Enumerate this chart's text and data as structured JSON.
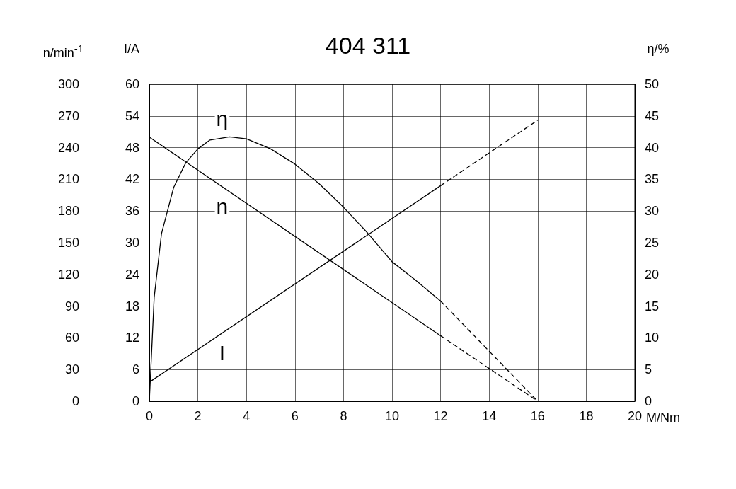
{
  "chart_data": {
    "type": "line",
    "title": "404 311",
    "xlabel": "M/Nm",
    "ylabel": "n/min$^{-1}$",
    "y2label": "I/A",
    "y3label": "η/%",
    "marker": "none",
    "grid": true,
    "xlim": [
      0,
      20
    ],
    "xticks": [
      0,
      2,
      4,
      6,
      8,
      10,
      12,
      14,
      16,
      18,
      20
    ],
    "ylim": [
      0,
      300
    ],
    "yticks": [
      0,
      30,
      60,
      90,
      120,
      150,
      180,
      210,
      240,
      270,
      300
    ],
    "y2lim": [
      0,
      60
    ],
    "y2ticks": [
      0,
      6,
      12,
      18,
      24,
      30,
      36,
      42,
      48,
      54,
      60
    ],
    "y3lim": [
      0,
      50
    ],
    "y3ticks": [
      0,
      5,
      10,
      15,
      20,
      25,
      30,
      35,
      40,
      45,
      50
    ],
    "series": [
      {
        "name": "η",
        "axis": "y3",
        "color": "#000000",
        "line_style": "solid",
        "x": [
          0,
          0.2,
          0.5,
          1,
          1.5,
          2,
          2.5,
          3.3,
          4,
          5,
          6,
          7,
          8,
          9,
          10,
          11,
          12
        ],
        "values": [
          0,
          16.4,
          26.4,
          33.7,
          37.6,
          39.8,
          41.2,
          41.7,
          41.4,
          39.8,
          37.4,
          34.3,
          30.6,
          26.5,
          22,
          19,
          15.8
        ]
      },
      {
        "axis": "y3",
        "color": "#000000",
        "line_style": "dashed",
        "x": [
          12,
          16
        ],
        "values": [
          15.8,
          0
        ]
      },
      {
        "name": "n",
        "axis": "y",
        "color": "#000000",
        "line_style": "solid",
        "x": [
          0,
          12
        ],
        "values": [
          250,
          62
        ]
      },
      {
        "axis": "y",
        "color": "#000000",
        "line_style": "dashed",
        "x": [
          12,
          16
        ],
        "values": [
          62,
          0
        ]
      },
      {
        "name": "I",
        "axis": "y2",
        "color": "#000000",
        "line_style": "solid",
        "x": [
          0,
          12
        ],
        "values": [
          3.6,
          40.8
        ]
      },
      {
        "axis": "y2",
        "color": "#000000",
        "line_style": "dashed",
        "x": [
          12,
          16
        ],
        "values": [
          40.8,
          53.2
        ]
      }
    ]
  }
}
